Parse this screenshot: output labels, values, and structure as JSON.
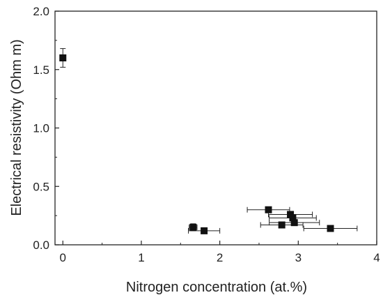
{
  "chart_data": {
    "type": "scatter",
    "title": "",
    "xlabel": "Nitrogen concentration (at.%)",
    "ylabel": "Electrical resistivity (Ohm m)",
    "xlim": [
      -0.1,
      4
    ],
    "ylim": [
      0,
      2.0
    ],
    "x_ticks": [
      0,
      1,
      2,
      3,
      4
    ],
    "x_tick_labels": [
      "0",
      "1",
      "2",
      "3",
      "4"
    ],
    "y_ticks": [
      0.0,
      0.5,
      1.0,
      1.5,
      2.0
    ],
    "y_tick_labels": [
      "0.0",
      "0.5",
      "1.0",
      "1.5",
      "2.0"
    ],
    "grid": false,
    "legend": false,
    "marker": "filled-square",
    "color": "#111111",
    "points": [
      {
        "x": 0.0,
        "y": 1.6,
        "xerr": 0.0,
        "yerr": 0.08
      },
      {
        "x": 1.66,
        "y": 0.15,
        "xerr": 0.05,
        "yerr": 0.03
      },
      {
        "x": 1.8,
        "y": 0.12,
        "xerr": 0.2,
        "yerr": 0.0
      },
      {
        "x": 2.62,
        "y": 0.3,
        "xerr": 0.27,
        "yerr": 0.0
      },
      {
        "x": 2.79,
        "y": 0.17,
        "xerr": 0.27,
        "yerr": 0.0
      },
      {
        "x": 2.9,
        "y": 0.26,
        "xerr": 0.28,
        "yerr": 0.0
      },
      {
        "x": 2.93,
        "y": 0.23,
        "xerr": 0.3,
        "yerr": 0.0
      },
      {
        "x": 2.95,
        "y": 0.19,
        "xerr": 0.32,
        "yerr": 0.0
      },
      {
        "x": 3.41,
        "y": 0.14,
        "xerr": 0.34,
        "yerr": 0.0
      }
    ]
  }
}
